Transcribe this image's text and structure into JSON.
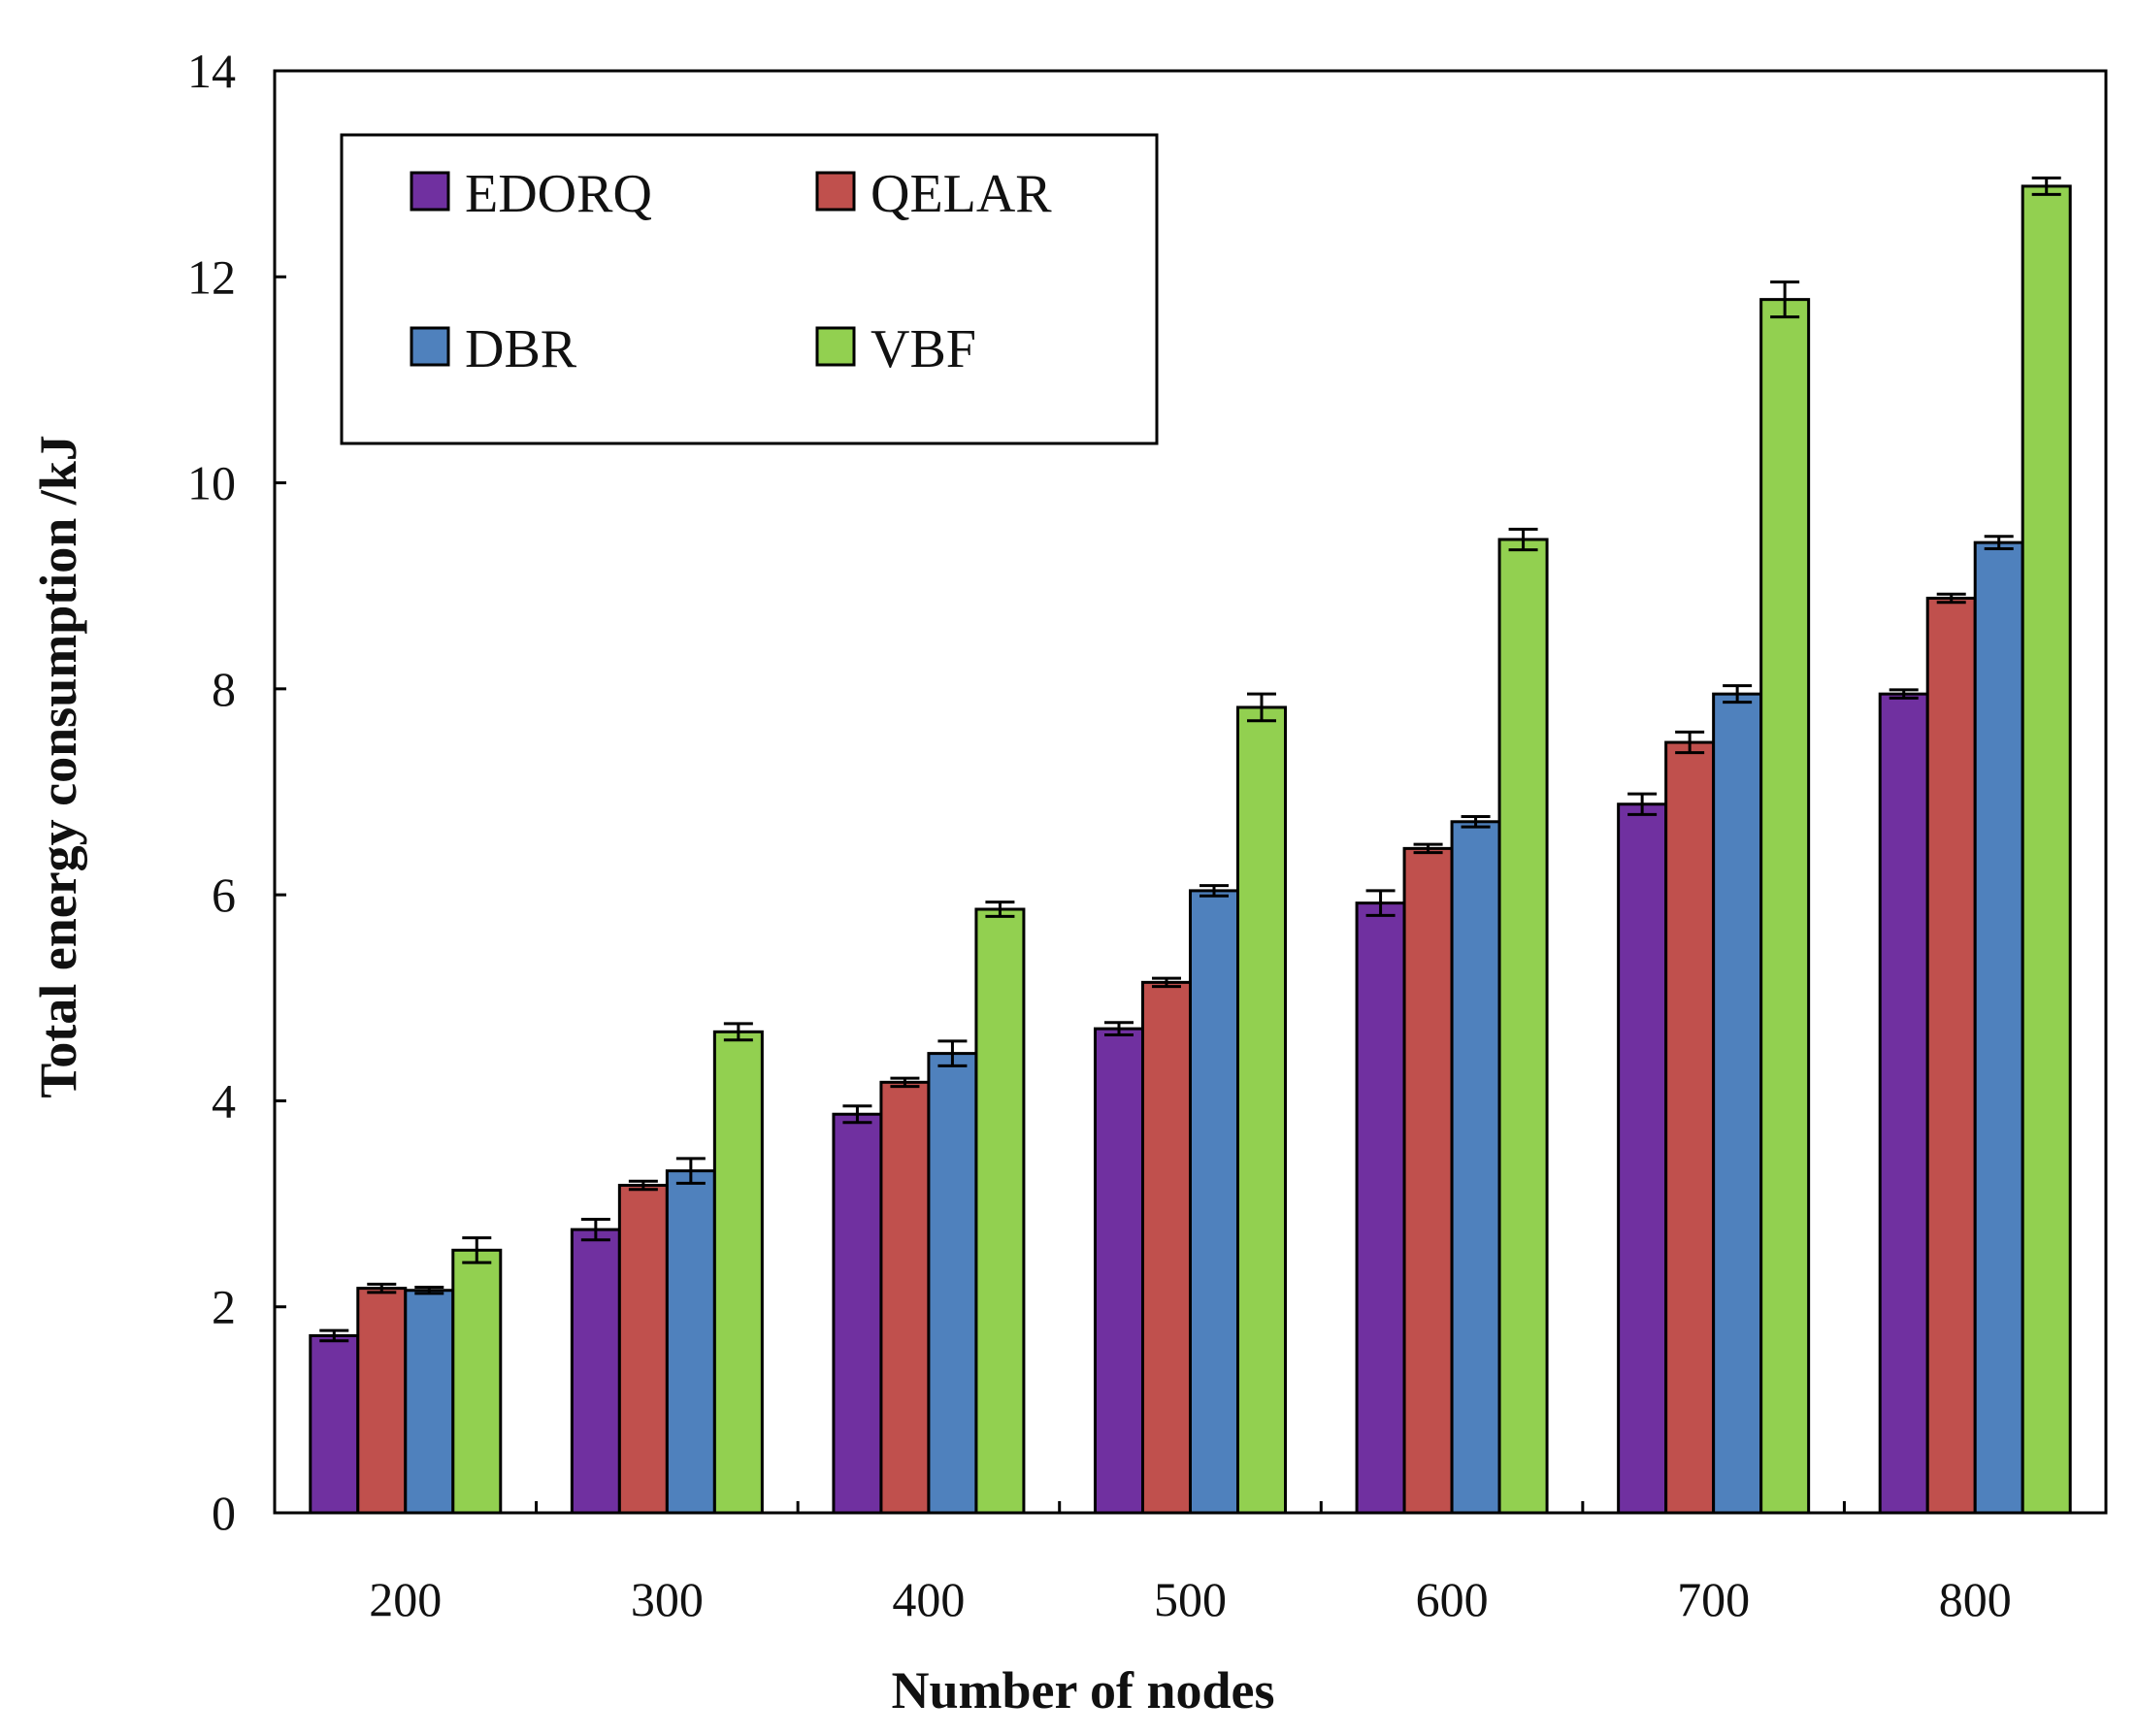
{
  "chart_data": {
    "type": "bar",
    "title": "",
    "xlabel": "Number of nodes",
    "ylabel": "Total energy consumption /kJ",
    "ylim": [
      0,
      14
    ],
    "yticks": [
      0,
      2,
      4,
      6,
      8,
      10,
      12,
      14
    ],
    "grid": false,
    "legend_position": "top-left",
    "categories": [
      "200",
      "300",
      "400",
      "500",
      "600",
      "700",
      "800"
    ],
    "series": [
      {
        "name": "EDORQ",
        "color": "#7030a0",
        "values": [
          1.72,
          2.75,
          3.87,
          4.7,
          5.92,
          6.88,
          7.95
        ],
        "errors": [
          0.05,
          0.1,
          0.08,
          0.06,
          0.12,
          0.1,
          0.04
        ]
      },
      {
        "name": "QELAR",
        "color": "#c0504d",
        "values": [
          2.18,
          3.18,
          4.18,
          5.15,
          6.45,
          7.48,
          8.88
        ],
        "errors": [
          0.04,
          0.04,
          0.04,
          0.04,
          0.04,
          0.1,
          0.04
        ]
      },
      {
        "name": "DBR",
        "color": "#4f81bd",
        "values": [
          2.16,
          3.32,
          4.46,
          6.04,
          6.71,
          7.95,
          9.42
        ],
        "errors": [
          0.03,
          0.12,
          0.12,
          0.05,
          0.05,
          0.08,
          0.06
        ]
      },
      {
        "name": "VBF",
        "color": "#92d050",
        "values": [
          2.55,
          4.67,
          5.86,
          7.82,
          9.45,
          11.78,
          12.88
        ],
        "errors": [
          0.12,
          0.08,
          0.07,
          0.13,
          0.1,
          0.17,
          0.08
        ]
      }
    ]
  }
}
